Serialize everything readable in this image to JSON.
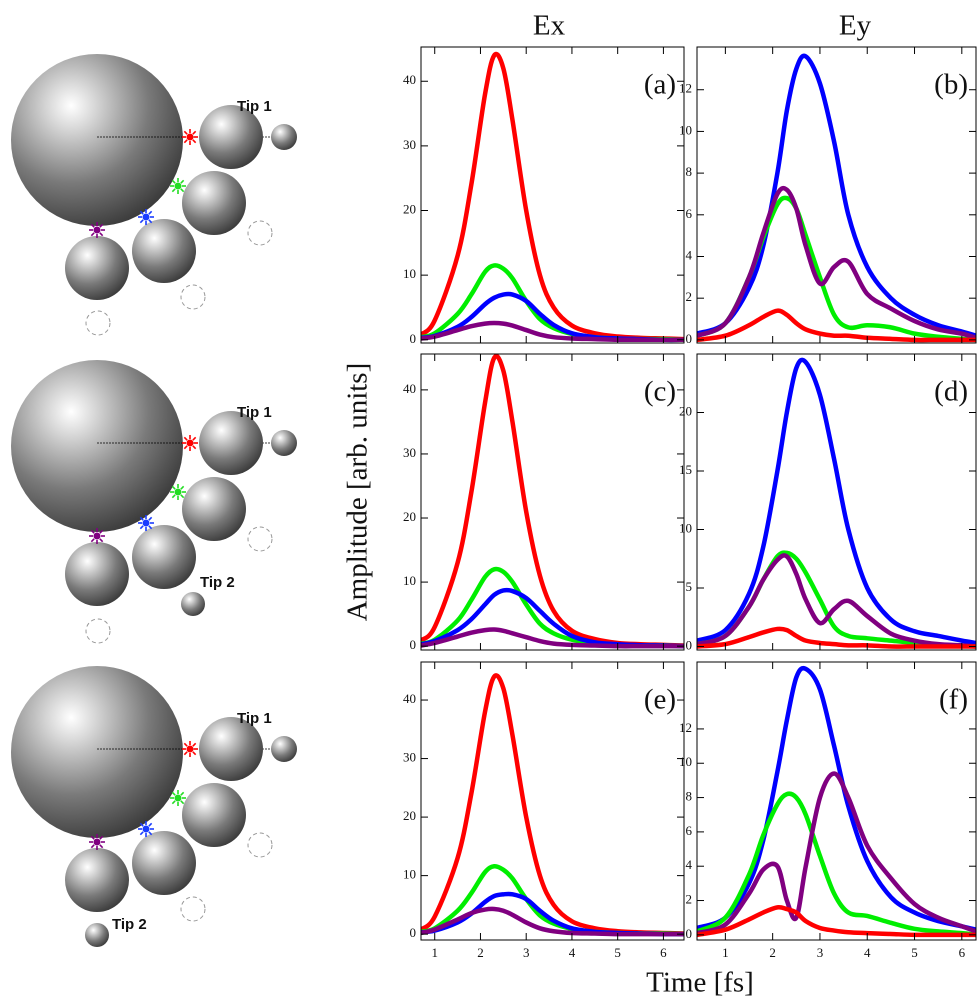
{
  "figure": {
    "column_titles": [
      "Ex",
      "Ey"
    ],
    "ylabel": "Amplitude [arb. units]",
    "xlabel": "Time [fs]"
  },
  "diagrams": [
    [
      "Tip 1"
    ],
    [
      "Tip 1",
      "Tip 2"
    ],
    [
      "Tip 1",
      "Tip 2"
    ]
  ],
  "chart_data": [
    {
      "type": "line",
      "annotation": "(a)",
      "xlim": [
        0.7,
        6.45
      ],
      "xticks": [
        1,
        2,
        3,
        4,
        5,
        6
      ],
      "ylim": [
        -0.5,
        45.3
      ],
      "yticks": [
        0,
        10,
        20,
        30,
        40
      ],
      "x": [
        0.7,
        1,
        1.5,
        1.8,
        2.1,
        2.3,
        2.5,
        2.7,
        3,
        3.3,
        3.6,
        4,
        4.5,
        5,
        5.5,
        6,
        6.45
      ],
      "series": [
        {
          "color": "#ff0000",
          "values": [
            0.8,
            3,
            13,
            24,
            38,
            44,
            42,
            34,
            20,
            10,
            5,
            2.2,
            1,
            0.5,
            0.3,
            0.2,
            0.1
          ]
        },
        {
          "color": "#00ee00",
          "values": [
            0.4,
            1,
            4,
            7,
            10.5,
            11.5,
            11,
            9.5,
            6,
            3.2,
            1.8,
            0.9,
            0.4,
            0.2,
            0.1,
            0.1,
            0
          ]
        },
        {
          "color": "#0000ff",
          "values": [
            0.3,
            0.6,
            2,
            3.5,
            5.5,
            6.5,
            7,
            7,
            6,
            4,
            2.3,
            1,
            0.4,
            0.2,
            0.1,
            0,
            0
          ]
        },
        {
          "color": "#800080",
          "values": [
            0.2,
            0.5,
            1.5,
            2.1,
            2.5,
            2.6,
            2.5,
            2.2,
            1.5,
            0.8,
            0.4,
            0.2,
            0.1,
            0,
            0,
            0,
            0
          ]
        }
      ]
    },
    {
      "type": "line",
      "annotation": "(b)",
      "xlim": [
        0.4,
        6.3
      ],
      "xticks": [
        1,
        2,
        3,
        4,
        5,
        6
      ],
      "ylim": [
        -0.15,
        14.05
      ],
      "yticks": [
        0,
        2,
        4,
        6,
        8,
        10,
        12
      ],
      "x": [
        0.4,
        1,
        1.5,
        1.8,
        2.1,
        2.3,
        2.5,
        2.7,
        3,
        3.3,
        3.6,
        4,
        4.5,
        5,
        5.5,
        6,
        6.3
      ],
      "series": [
        {
          "color": "#0000ff",
          "values": [
            0.3,
            0.8,
            2.5,
            4.5,
            8,
            11,
            13,
            13.6,
            12.3,
            9.5,
            6,
            3.5,
            2,
            1.2,
            0.7,
            0.4,
            0.2
          ]
        },
        {
          "color": "#00ee00",
          "values": [
            0.2,
            0.8,
            3,
            4.9,
            6.5,
            6.8,
            6.3,
            5,
            3,
            1.2,
            0.6,
            0.7,
            0.6,
            0.3,
            0.15,
            0.05,
            0
          ]
        },
        {
          "color": "#800080",
          "values": [
            0.2,
            0.8,
            3,
            5.1,
            7,
            7.2,
            6.3,
            4.5,
            2.7,
            3.5,
            3.75,
            2.2,
            1.5,
            0.9,
            0.5,
            0.3,
            0.1
          ]
        },
        {
          "color": "#ff0000",
          "values": [
            0,
            0.2,
            0.7,
            1.1,
            1.4,
            1.2,
            0.8,
            0.5,
            0.3,
            0.2,
            0.2,
            0.1,
            0.05,
            0,
            0,
            0,
            0
          ]
        }
      ]
    },
    {
      "type": "line",
      "annotation": "(c)",
      "xlim": [
        0.7,
        6.45
      ],
      "xticks": [
        1,
        2,
        3,
        4,
        5,
        6
      ],
      "ylim": [
        -0.6,
        45.6
      ],
      "yticks": [
        0,
        10,
        20,
        30,
        40
      ],
      "x": [
        0.7,
        1,
        1.5,
        1.8,
        2.1,
        2.3,
        2.5,
        2.7,
        3,
        3.3,
        3.6,
        4,
        4.5,
        5,
        5.5,
        6,
        6.45
      ],
      "series": [
        {
          "color": "#ff0000",
          "values": [
            0.9,
            3,
            13,
            24,
            38,
            45,
            43,
            35,
            21,
            11,
            5.5,
            2.4,
            1.1,
            0.5,
            0.3,
            0.2,
            0.1
          ]
        },
        {
          "color": "#00ee00",
          "values": [
            0.4,
            1,
            4,
            7.2,
            10.8,
            12,
            11.6,
            10,
            6.5,
            3.5,
            2,
            1,
            0.4,
            0.2,
            0.1,
            0.1,
            0
          ]
        },
        {
          "color": "#0000ff",
          "values": [
            0.3,
            0.8,
            2.5,
            4.2,
            6.5,
            8,
            8.7,
            8.6,
            7.5,
            5.5,
            3.5,
            1.6,
            0.6,
            0.3,
            0.15,
            0.1,
            0
          ]
        },
        {
          "color": "#800080",
          "values": [
            0.1,
            0.5,
            1.5,
            2.1,
            2.5,
            2.6,
            2.4,
            2,
            1.4,
            0.8,
            0.4,
            0.2,
            0.1,
            0,
            0,
            0,
            0
          ]
        }
      ]
    },
    {
      "type": "line",
      "annotation": "(d)",
      "xlim": [
        0.4,
        6.3
      ],
      "xticks": [
        1,
        2,
        3,
        4,
        5,
        6
      ],
      "ylim": [
        -0.3,
        25
      ],
      "yticks": [
        0,
        5,
        10,
        15,
        20
      ],
      "x": [
        0.4,
        1,
        1.5,
        1.8,
        2.1,
        2.3,
        2.5,
        2.7,
        3,
        3.3,
        3.6,
        4,
        4.5,
        5,
        5.5,
        6,
        6.3
      ],
      "series": [
        {
          "color": "#0000ff",
          "values": [
            0.5,
            1.4,
            4.5,
            8.5,
            15,
            20,
            23.8,
            24.3,
            21.5,
            16,
            10,
            5,
            2.3,
            1.3,
            0.9,
            0.5,
            0.3
          ]
        },
        {
          "color": "#00ee00",
          "values": [
            0.2,
            0.9,
            3.4,
            5.7,
            7.7,
            8,
            7.5,
            6.3,
            4,
            1.7,
            0.9,
            0.7,
            0.5,
            0.3,
            0.15,
            0.05,
            0
          ]
        },
        {
          "color": "#800080",
          "values": [
            0.2,
            0.9,
            3.4,
            5.7,
            7.4,
            7.7,
            6.2,
            4,
            2,
            3.2,
            3.9,
            2.6,
            1.1,
            0.5,
            0.2,
            0.1,
            0
          ]
        },
        {
          "color": "#ff0000",
          "values": [
            0,
            0.2,
            0.8,
            1.2,
            1.5,
            1.4,
            0.9,
            0.5,
            0.3,
            0.2,
            0.1,
            0.1,
            0,
            0,
            0,
            0,
            0
          ]
        }
      ]
    },
    {
      "type": "line",
      "annotation": "(e)",
      "xlim": [
        0.7,
        6.45
      ],
      "xticks": [
        1,
        2,
        3,
        4,
        5,
        6
      ],
      "ylim": [
        -1,
        46.5
      ],
      "yticks": [
        0,
        10,
        20,
        30,
        40
      ],
      "x": [
        0.7,
        1,
        1.5,
        1.8,
        2.1,
        2.3,
        2.5,
        2.7,
        3,
        3.3,
        3.6,
        4,
        4.5,
        5,
        5.5,
        6,
        6.45
      ],
      "series": [
        {
          "color": "#ff0000",
          "values": [
            0.8,
            3,
            13,
            24,
            38,
            44,
            42,
            34,
            20,
            10,
            5,
            2.2,
            1,
            0.5,
            0.3,
            0.2,
            0.1
          ]
        },
        {
          "color": "#00ee00",
          "values": [
            0.4,
            1,
            4,
            7,
            10.6,
            11.6,
            11,
            9.5,
            6,
            3.2,
            1.8,
            0.9,
            0.4,
            0.2,
            0.1,
            0.1,
            0
          ]
        },
        {
          "color": "#0000ff",
          "values": [
            0.3,
            0.6,
            2,
            3.5,
            5.5,
            6.5,
            6.8,
            6.8,
            6,
            4,
            2.3,
            1,
            0.4,
            0.2,
            0.1,
            0,
            0
          ]
        },
        {
          "color": "#800080",
          "values": [
            0.2,
            0.8,
            2.5,
            3.6,
            4.2,
            4.3,
            4,
            3.3,
            2,
            1,
            0.5,
            0.2,
            0.1,
            0,
            0,
            0,
            0
          ]
        }
      ]
    },
    {
      "type": "line",
      "annotation": "(f)",
      "xlim": [
        0.4,
        6.3
      ],
      "xticks": [
        1,
        2,
        3,
        4,
        5,
        6
      ],
      "ylim": [
        -0.3,
        15.9
      ],
      "yticks": [
        0,
        2,
        4,
        6,
        8,
        10,
        12
      ],
      "x": [
        0.4,
        1,
        1.5,
        1.8,
        2.1,
        2.3,
        2.5,
        2.7,
        3,
        3.3,
        3.6,
        4,
        4.5,
        5,
        5.5,
        6,
        6.3
      ],
      "series": [
        {
          "color": "#0000ff",
          "values": [
            0.4,
            1,
            3,
            5.5,
            9.5,
            12.5,
            15,
            15.5,
            14.3,
            11,
            7.5,
            4.3,
            2.2,
            1.3,
            0.8,
            0.5,
            0.3
          ]
        },
        {
          "color": "#00ee00",
          "values": [
            0.2,
            1,
            3.5,
            5.8,
            7.6,
            8.2,
            8,
            7,
            4.6,
            2.4,
            1.3,
            1.1,
            0.7,
            0.35,
            0.2,
            0.1,
            0
          ]
        },
        {
          "color": "#800080",
          "values": [
            0.1,
            0.6,
            2.4,
            3.8,
            4,
            2,
            1,
            4,
            8,
            9.4,
            8,
            5.2,
            3.3,
            1.8,
            1,
            0.5,
            0.2
          ]
        },
        {
          "color": "#ff0000",
          "values": [
            0,
            0.3,
            0.9,
            1.3,
            1.6,
            1.5,
            1.3,
            0.8,
            0.4,
            0.25,
            0.15,
            0.1,
            0.05,
            0,
            0,
            0,
            0
          ]
        }
      ]
    }
  ]
}
